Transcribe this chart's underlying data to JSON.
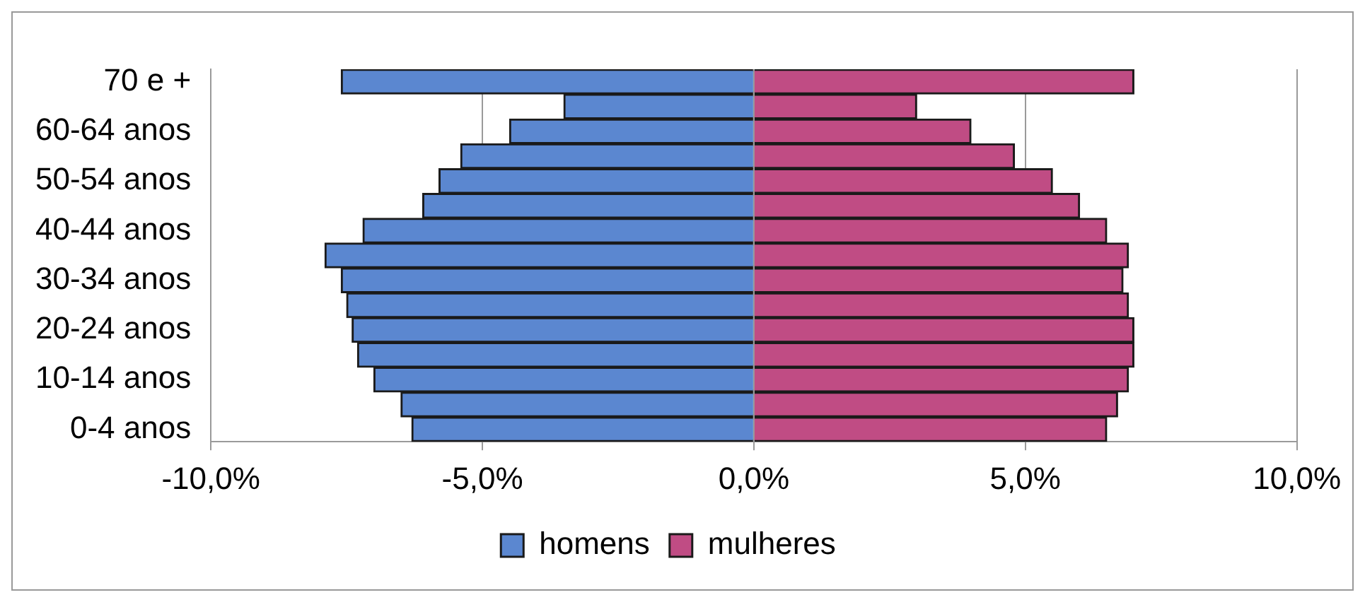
{
  "chart_data": {
    "type": "bar",
    "orientation": "horizontal",
    "stacked": true,
    "categories": [
      "70 e +",
      null,
      "60-64 anos",
      null,
      "50-54 anos",
      null,
      "40-44 anos",
      null,
      "30-34 anos",
      null,
      "20-24 anos",
      null,
      "10-14 anos",
      null,
      "0-4 anos"
    ],
    "series": [
      {
        "name": "homens",
        "color": "#5b87d0",
        "values": [
          -7.6,
          -3.5,
          -4.5,
          -5.4,
          -5.8,
          -6.1,
          -7.2,
          -7.9,
          -7.6,
          -7.5,
          -7.4,
          -7.3,
          -7.0,
          -6.5,
          -6.3
        ]
      },
      {
        "name": "mulheres",
        "color": "#c04c84",
        "values": [
          7.0,
          3.0,
          4.0,
          4.8,
          5.5,
          6.0,
          6.5,
          6.9,
          6.8,
          6.9,
          7.0,
          7.0,
          6.9,
          6.7,
          6.5
        ]
      }
    ],
    "xlim": [
      -10,
      10
    ],
    "xticks": [
      {
        "value": -10,
        "label": "-10,0%"
      },
      {
        "value": -5,
        "label": "-5,0%"
      },
      {
        "value": 0,
        "label": "0,0%"
      },
      {
        "value": 5,
        "label": "5,0%"
      },
      {
        "value": 10,
        "label": "10,0%"
      }
    ],
    "grid": "x",
    "legend": "bottom"
  }
}
